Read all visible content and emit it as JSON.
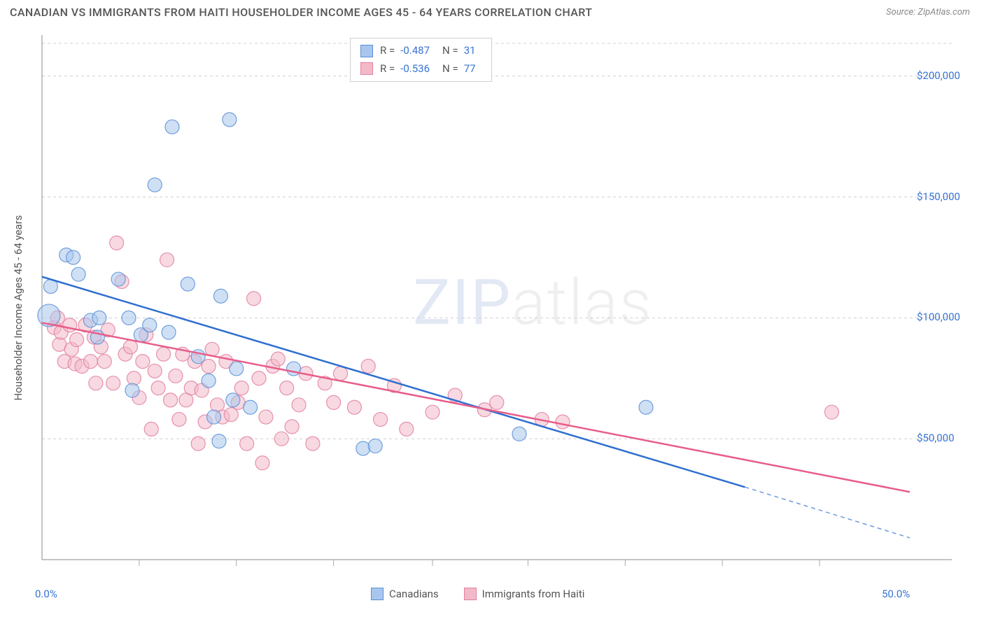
{
  "title": "CANADIAN VS IMMIGRANTS FROM HAITI HOUSEHOLDER INCOME AGES 45 - 64 YEARS CORRELATION CHART",
  "source": "Source: ZipAtlas.com",
  "y_axis_label": "Householder Income Ages 45 - 64 years",
  "watermark_part1": "ZIP",
  "watermark_part2": "atlas",
  "chart": {
    "type": "scatter",
    "background_color": "#ffffff",
    "grid_color": "#d0d0d0",
    "axis_color": "#888888",
    "tick_label_color": "#3873d4",
    "title_font_size": 16,
    "label_font_size": 15,
    "tick_font_size": 15,
    "marker_radius": 10,
    "marker_opacity": 0.55,
    "line_width": 2.5,
    "xlim": [
      0,
      50
    ],
    "ylim": [
      0,
      217000
    ],
    "x_ticks": [
      0,
      50
    ],
    "x_tick_labels": [
      "0.0%",
      "50.0%"
    ],
    "x_minor_ticks": [
      5.6,
      11.2,
      16.8,
      22.5,
      28.0,
      33.6,
      39.2,
      44.8
    ],
    "y_ticks": [
      50000,
      100000,
      150000,
      200000
    ],
    "y_tick_labels": [
      "$50,000",
      "$100,000",
      "$150,000",
      "$200,000"
    ],
    "series": [
      {
        "name": "Canadians",
        "color_fill": "#a8c6ed",
        "color_stroke": "#5b8fd6",
        "line_color": "#2f6fd0",
        "R": "-0.487",
        "N": "31",
        "trend": {
          "x1": 0,
          "y1": 117000,
          "x2": 40.5,
          "y2": 30000,
          "dash_to_x": 50,
          "dash_to_y": 9000
        },
        "points": [
          {
            "x": 0.4,
            "y": 101000,
            "r": 16
          },
          {
            "x": 0.5,
            "y": 113000
          },
          {
            "x": 1.4,
            "y": 126000
          },
          {
            "x": 1.8,
            "y": 125000
          },
          {
            "x": 2.1,
            "y": 118000
          },
          {
            "x": 2.8,
            "y": 99000
          },
          {
            "x": 3.2,
            "y": 92000
          },
          {
            "x": 3.3,
            "y": 100000
          },
          {
            "x": 4.4,
            "y": 116000
          },
          {
            "x": 5.0,
            "y": 100000
          },
          {
            "x": 5.2,
            "y": 70000
          },
          {
            "x": 5.7,
            "y": 93000
          },
          {
            "x": 6.2,
            "y": 97000
          },
          {
            "x": 6.5,
            "y": 155000
          },
          {
            "x": 7.3,
            "y": 94000
          },
          {
            "x": 7.5,
            "y": 179000
          },
          {
            "x": 8.4,
            "y": 114000
          },
          {
            "x": 9.0,
            "y": 84000
          },
          {
            "x": 9.6,
            "y": 74000
          },
          {
            "x": 9.9,
            "y": 59000
          },
          {
            "x": 10.2,
            "y": 49000
          },
          {
            "x": 10.3,
            "y": 109000
          },
          {
            "x": 10.8,
            "y": 182000
          },
          {
            "x": 11.0,
            "y": 66000
          },
          {
            "x": 11.2,
            "y": 79000
          },
          {
            "x": 12.0,
            "y": 63000
          },
          {
            "x": 14.5,
            "y": 79000
          },
          {
            "x": 18.5,
            "y": 46000
          },
          {
            "x": 19.2,
            "y": 47000
          },
          {
            "x": 27.5,
            "y": 52000
          },
          {
            "x": 34.8,
            "y": 63000
          }
        ]
      },
      {
        "name": "Immigrants from Haiti",
        "color_fill": "#f2b9c9",
        "color_stroke": "#e37fa0",
        "line_color": "#e85d8a",
        "R": "-0.536",
        "N": "77",
        "trend": {
          "x1": 0,
          "y1": 98000,
          "x2": 50,
          "y2": 28000
        },
        "points": [
          {
            "x": 0.7,
            "y": 96000
          },
          {
            "x": 0.9,
            "y": 100000
          },
          {
            "x": 1.0,
            "y": 89000
          },
          {
            "x": 1.1,
            "y": 94000
          },
          {
            "x": 1.3,
            "y": 82000
          },
          {
            "x": 1.6,
            "y": 97000
          },
          {
            "x": 1.7,
            "y": 87000
          },
          {
            "x": 1.9,
            "y": 81000
          },
          {
            "x": 2.0,
            "y": 91000
          },
          {
            "x": 2.3,
            "y": 80000
          },
          {
            "x": 2.5,
            "y": 97000
          },
          {
            "x": 2.8,
            "y": 82000
          },
          {
            "x": 3.0,
            "y": 92000
          },
          {
            "x": 3.1,
            "y": 73000
          },
          {
            "x": 3.4,
            "y": 88000
          },
          {
            "x": 3.6,
            "y": 82000
          },
          {
            "x": 3.8,
            "y": 95000
          },
          {
            "x": 4.1,
            "y": 73000
          },
          {
            "x": 4.3,
            "y": 131000
          },
          {
            "x": 4.6,
            "y": 115000
          },
          {
            "x": 4.8,
            "y": 85000
          },
          {
            "x": 5.1,
            "y": 88000
          },
          {
            "x": 5.3,
            "y": 75000
          },
          {
            "x": 5.6,
            "y": 67000
          },
          {
            "x": 5.8,
            "y": 82000
          },
          {
            "x": 6.0,
            "y": 93000
          },
          {
            "x": 6.3,
            "y": 54000
          },
          {
            "x": 6.5,
            "y": 78000
          },
          {
            "x": 6.7,
            "y": 71000
          },
          {
            "x": 7.0,
            "y": 85000
          },
          {
            "x": 7.2,
            "y": 124000
          },
          {
            "x": 7.4,
            "y": 66000
          },
          {
            "x": 7.7,
            "y": 76000
          },
          {
            "x": 7.9,
            "y": 58000
          },
          {
            "x": 8.1,
            "y": 85000
          },
          {
            "x": 8.3,
            "y": 66000
          },
          {
            "x": 8.6,
            "y": 71000
          },
          {
            "x": 8.8,
            "y": 82000
          },
          {
            "x": 9.0,
            "y": 48000
          },
          {
            "x": 9.2,
            "y": 70000
          },
          {
            "x": 9.4,
            "y": 57000
          },
          {
            "x": 9.6,
            "y": 80000
          },
          {
            "x": 9.8,
            "y": 87000
          },
          {
            "x": 10.1,
            "y": 64000
          },
          {
            "x": 10.4,
            "y": 59000
          },
          {
            "x": 10.6,
            "y": 82000
          },
          {
            "x": 10.9,
            "y": 60000
          },
          {
            "x": 11.3,
            "y": 65000
          },
          {
            "x": 11.5,
            "y": 71000
          },
          {
            "x": 11.8,
            "y": 48000
          },
          {
            "x": 12.2,
            "y": 108000
          },
          {
            "x": 12.5,
            "y": 75000
          },
          {
            "x": 12.7,
            "y": 40000
          },
          {
            "x": 12.9,
            "y": 59000
          },
          {
            "x": 13.3,
            "y": 80000
          },
          {
            "x": 13.6,
            "y": 83000
          },
          {
            "x": 13.8,
            "y": 50000
          },
          {
            "x": 14.1,
            "y": 71000
          },
          {
            "x": 14.4,
            "y": 55000
          },
          {
            "x": 14.8,
            "y": 64000
          },
          {
            "x": 15.2,
            "y": 77000
          },
          {
            "x": 15.6,
            "y": 48000
          },
          {
            "x": 16.3,
            "y": 73000
          },
          {
            "x": 16.8,
            "y": 65000
          },
          {
            "x": 17.2,
            "y": 77000
          },
          {
            "x": 18.0,
            "y": 63000
          },
          {
            "x": 18.8,
            "y": 80000
          },
          {
            "x": 19.5,
            "y": 58000
          },
          {
            "x": 20.3,
            "y": 72000
          },
          {
            "x": 21.0,
            "y": 54000
          },
          {
            "x": 22.5,
            "y": 61000
          },
          {
            "x": 23.8,
            "y": 68000
          },
          {
            "x": 25.5,
            "y": 62000
          },
          {
            "x": 26.2,
            "y": 65000
          },
          {
            "x": 28.8,
            "y": 58000
          },
          {
            "x": 30.0,
            "y": 57000
          },
          {
            "x": 45.5,
            "y": 61000
          }
        ]
      }
    ]
  },
  "legend": {
    "series1_label": "Canadians",
    "series2_label": "Immigrants from Haiti"
  },
  "stats_labels": {
    "R": "R =",
    "N": "N ="
  }
}
